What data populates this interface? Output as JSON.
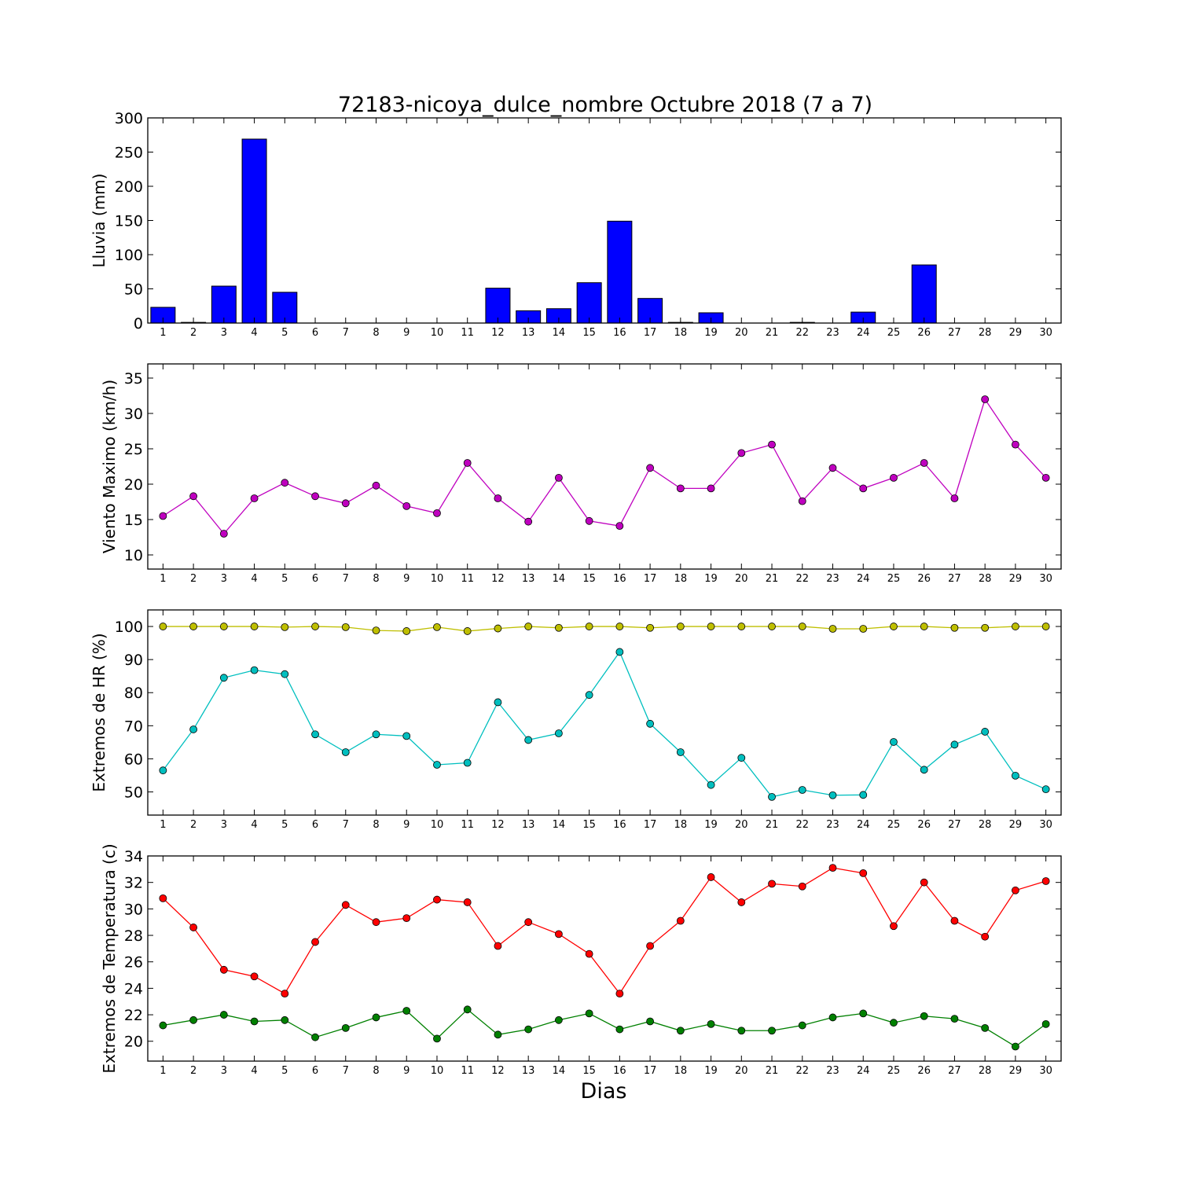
{
  "title": "72183-nicoya_dulce_nombre Octubre 2018  (7 a 7)",
  "xlabel": "Dias",
  "days": [
    1,
    2,
    3,
    4,
    5,
    6,
    7,
    8,
    9,
    10,
    11,
    12,
    13,
    14,
    15,
    16,
    17,
    18,
    19,
    20,
    21,
    22,
    23,
    24,
    25,
    26,
    27,
    28,
    29,
    30
  ],
  "chart_data": [
    {
      "type": "bar",
      "ylabel": "Lluvia (mm)",
      "ylim": [
        0,
        300
      ],
      "yticks": [
        0,
        50,
        100,
        150,
        200,
        250,
        300
      ],
      "series": [
        {
          "color": "#0000ff",
          "values": [
            23,
            1,
            54,
            269,
            45,
            0,
            0,
            0,
            0,
            0,
            0,
            51,
            18,
            21,
            59,
            149,
            36,
            1,
            15,
            0,
            0,
            1,
            0,
            16,
            0,
            85,
            0,
            0,
            0,
            0
          ]
        }
      ]
    },
    {
      "type": "line",
      "ylabel": "Viento Maximo (km/h)",
      "ylim": [
        8,
        37
      ],
      "yticks": [
        10,
        15,
        20,
        25,
        30,
        35
      ],
      "series": [
        {
          "color": "#bf00bf",
          "values": [
            15.5,
            18.3,
            13.0,
            18.0,
            20.2,
            18.3,
            17.3,
            19.8,
            16.9,
            15.9,
            23.0,
            18.0,
            14.7,
            20.9,
            14.8,
            14.1,
            22.3,
            19.4,
            19.4,
            24.4,
            25.6,
            17.6,
            22.3,
            19.4,
            20.9,
            23.0,
            18.0,
            32.0,
            25.6,
            20.9
          ]
        }
      ]
    },
    {
      "type": "line",
      "ylabel": "Extremos de HR (%)",
      "ylim": [
        43,
        105
      ],
      "yticks": [
        50,
        60,
        70,
        80,
        90,
        100
      ],
      "series": [
        {
          "color": "#bfbf00",
          "values": [
            100,
            100,
            100,
            100,
            99.8,
            100,
            99.8,
            98.8,
            98.6,
            99.8,
            98.6,
            99.4,
            100,
            99.6,
            100,
            100,
            99.6,
            100,
            100,
            100,
            100,
            100,
            99.3,
            99.3,
            100,
            100,
            99.6,
            99.6,
            100,
            100
          ]
        },
        {
          "color": "#00bfbf",
          "values": [
            56.5,
            68.9,
            84.5,
            86.8,
            85.6,
            67.4,
            62.0,
            67.4,
            66.9,
            58.2,
            58.8,
            77.1,
            65.7,
            67.7,
            79.3,
            92.3,
            70.6,
            62.0,
            52.1,
            60.3,
            48.5,
            50.6,
            49.0,
            49.1,
            65.1,
            56.7,
            64.3,
            68.2,
            54.9,
            50.8
          ]
        }
      ]
    },
    {
      "type": "line",
      "ylabel": "Extremos de Temperatura (c)",
      "ylim": [
        18.5,
        34
      ],
      "yticks": [
        20,
        22,
        24,
        26,
        28,
        30,
        32,
        34
      ],
      "series": [
        {
          "color": "#ff0000",
          "values": [
            30.8,
            28.6,
            25.4,
            24.9,
            23.6,
            27.5,
            30.3,
            29.0,
            29.3,
            30.7,
            30.5,
            27.2,
            29.0,
            28.1,
            26.6,
            23.6,
            27.2,
            29.1,
            32.4,
            30.5,
            31.9,
            31.7,
            33.1,
            32.7,
            28.7,
            32.0,
            29.1,
            27.9,
            31.4,
            32.1
          ]
        },
        {
          "color": "#008000",
          "values": [
            21.2,
            21.6,
            22.0,
            21.5,
            21.6,
            20.3,
            21.0,
            21.8,
            22.3,
            20.2,
            22.4,
            20.5,
            20.9,
            21.6,
            22.1,
            20.9,
            21.5,
            20.8,
            21.3,
            20.8,
            20.8,
            21.2,
            21.8,
            22.1,
            21.4,
            21.9,
            21.7,
            21.0,
            19.6,
            21.3
          ]
        }
      ]
    }
  ]
}
